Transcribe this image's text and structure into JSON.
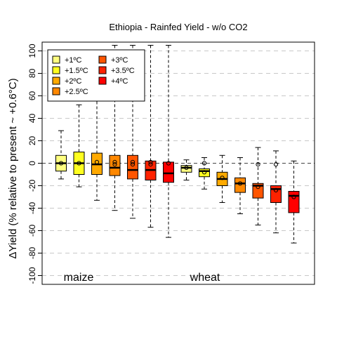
{
  "chart_data": {
    "type": "box",
    "title": "Ethiopia - Rainfed Yield - w/o CO2",
    "ylabel": "ΔYield (% relative to present ~ +0.6°C)",
    "xlabel": "",
    "ylim": [
      -105,
      105
    ],
    "yticks": [
      -100,
      -80,
      -60,
      -40,
      -20,
      0,
      20,
      40,
      60,
      80,
      100
    ],
    "grid": "horizontal-dashed",
    "legend_position": "top-left",
    "legend": [
      {
        "label": "+1ºC",
        "color": "#ffff80"
      },
      {
        "label": "+1.5ºC",
        "color": "#ffff20"
      },
      {
        "label": "+2ºC",
        "color": "#ffaa00"
      },
      {
        "label": "+2.5ºC",
        "color": "#ff8800"
      },
      {
        "label": "+3ºC",
        "color": "#ff5500"
      },
      {
        "label": "+3.5ºC",
        "color": "#ff2200"
      },
      {
        "label": "+4ºC",
        "color": "#ff0000"
      }
    ],
    "groups": [
      {
        "label": "maize",
        "boxes": [
          {
            "scenario": "+1ºC",
            "whisker_low": -14,
            "q1": -7,
            "median": 0,
            "q3": 7,
            "whisker_high": 29,
            "mean": 0,
            "outliers": []
          },
          {
            "scenario": "+1.5ºC",
            "whisker_low": -21,
            "q1": -10,
            "median": 0,
            "q3": 10,
            "whisker_high": 52,
            "mean": 0,
            "outliers": []
          },
          {
            "scenario": "+2ºC",
            "whisker_low": -33,
            "q1": -10,
            "median": -1,
            "q3": 9,
            "whisker_high": 90,
            "mean": 1,
            "outliers": []
          },
          {
            "scenario": "+2.5ºC",
            "whisker_low": -42,
            "q1": -11,
            "median": -4,
            "q3": 7,
            "whisker_high": 105,
            "mean": 1,
            "outliers": [
              -1
            ]
          },
          {
            "scenario": "+3ºC",
            "whisker_low": -49,
            "q1": -14,
            "median": -6,
            "q3": 7,
            "whisker_high": 105,
            "mean": 1,
            "outliers": [
              -1
            ]
          },
          {
            "scenario": "+3.5ºC",
            "whisker_low": -57,
            "q1": -15,
            "median": -6,
            "q3": 2,
            "whisker_high": 105,
            "mean": 1,
            "outliers": [
              -1
            ]
          },
          {
            "scenario": "+4ºC",
            "whisker_low": -66,
            "q1": -17,
            "median": -9,
            "q3": 1,
            "whisker_high": 105,
            "mean": 0,
            "outliers": []
          }
        ]
      },
      {
        "label": "wheat",
        "boxes": [
          {
            "scenario": "+1ºC",
            "whisker_low": -15,
            "q1": -8,
            "median": -4,
            "q3": -2,
            "whisker_high": 3,
            "mean": -4,
            "outliers": []
          },
          {
            "scenario": "+1.5ºC",
            "whisker_low": -23,
            "q1": -12,
            "median": -7,
            "q3": -5,
            "whisker_high": 5,
            "mean": -8,
            "outliers": [
              0
            ]
          },
          {
            "scenario": "+2ºC",
            "whisker_low": -35,
            "q1": -20,
            "median": -14,
            "q3": -8,
            "whisker_high": 7,
            "mean": -13,
            "outliers": []
          },
          {
            "scenario": "+2.5ºC",
            "whisker_low": -45,
            "q1": -26,
            "median": -18,
            "q3": -13,
            "whisker_high": 5,
            "mean": -18,
            "outliers": []
          },
          {
            "scenario": "+3ºC",
            "whisker_low": -55,
            "q1": -31,
            "median": -20,
            "q3": -18,
            "whisker_high": 14,
            "mean": -21,
            "outliers": [
              -1
            ]
          },
          {
            "scenario": "+3.5ºC",
            "whisker_low": -62,
            "q1": -35,
            "median": -23,
            "q3": -20,
            "whisker_high": 11,
            "mean": -24,
            "outliers": [
              -1
            ]
          },
          {
            "scenario": "+4ºC",
            "whisker_low": -71,
            "q1": -44,
            "median": -29,
            "q3": -25,
            "whisker_high": 2,
            "mean": -30,
            "outliers": []
          }
        ]
      }
    ]
  }
}
